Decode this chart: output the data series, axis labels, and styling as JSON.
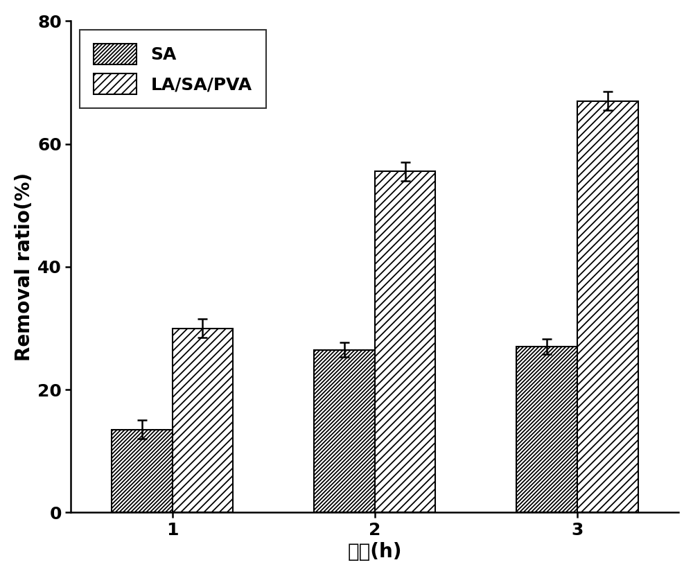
{
  "categories": [
    1,
    2,
    3
  ],
  "SA_values": [
    13.5,
    26.5,
    27.0
  ],
  "SA_errors": [
    1.5,
    1.2,
    1.2
  ],
  "LASAPVA_values": [
    30.0,
    55.5,
    67.0
  ],
  "LASAPVA_errors": [
    1.5,
    1.5,
    1.5
  ],
  "xlabel": "时间(h)",
  "ylabel": "Removal ratio(%)",
  "ylim": [
    0,
    80
  ],
  "yticks": [
    0,
    20,
    40,
    60,
    80
  ],
  "xticks": [
    1,
    2,
    3
  ],
  "legend_SA": "SA",
  "legend_LASAPVA": "LA/SA/PVA",
  "bar_width": 0.3,
  "bar_edge_color": "#000000",
  "bar_face_color": "#ffffff",
  "figure_width": 10.0,
  "figure_height": 8.31,
  "label_fontsize": 20,
  "tick_fontsize": 18,
  "legend_fontsize": 18
}
